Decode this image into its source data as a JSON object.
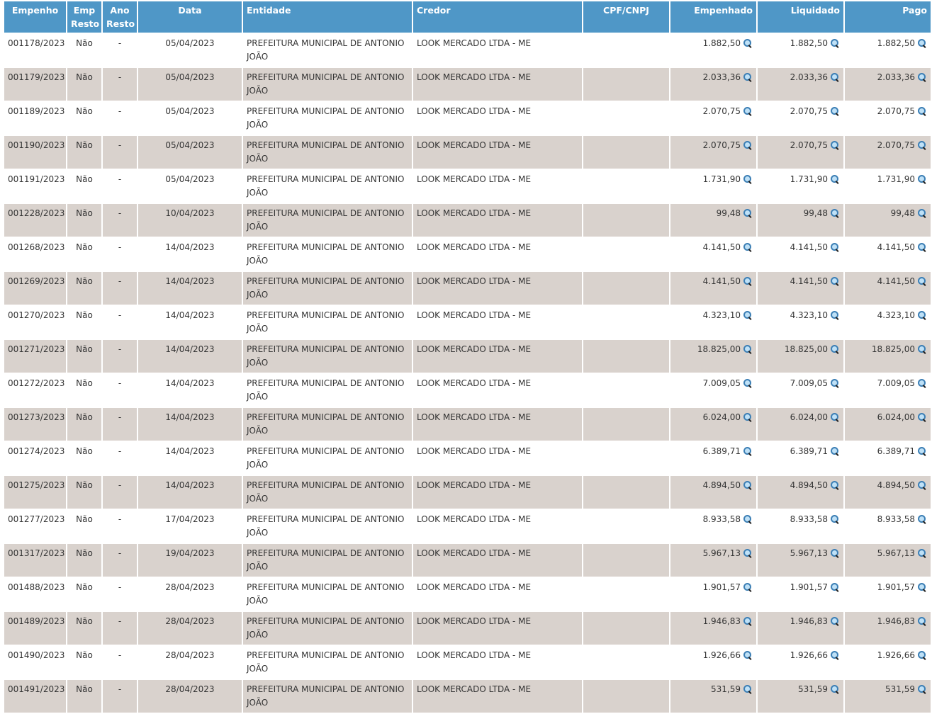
{
  "table": {
    "headers": {
      "empenho": "Empenho",
      "emp_resto": "Emp Resto",
      "ano_resto": "Ano Resto",
      "data": "Data",
      "entidade": "Entidade",
      "credor": "Credor",
      "cpf_cnpj": "CPF/CNPJ",
      "empenhado": "Empenhado",
      "liquidado": "Liquidado",
      "pago": "Pago"
    },
    "icon": "magnifier-icon",
    "rows": [
      {
        "empenho": "001178/2023",
        "emp_resto": "Não",
        "ano_resto": "-",
        "data": "05/04/2023",
        "entidade": "PREFEITURA MUNICIPAL DE ANTONIO JOÃO",
        "credor": "LOOK MERCADO LTDA - ME",
        "cpf": "",
        "empenhado": "1.882,50",
        "liquidado": "1.882,50",
        "pago": "1.882,50"
      },
      {
        "empenho": "001179/2023",
        "emp_resto": "Não",
        "ano_resto": "-",
        "data": "05/04/2023",
        "entidade": "PREFEITURA MUNICIPAL DE ANTONIO JOÃO",
        "credor": "LOOK MERCADO LTDA - ME",
        "cpf": "",
        "empenhado": "2.033,36",
        "liquidado": "2.033,36",
        "pago": "2.033,36"
      },
      {
        "empenho": "001189/2023",
        "emp_resto": "Não",
        "ano_resto": "-",
        "data": "05/04/2023",
        "entidade": "PREFEITURA MUNICIPAL DE ANTONIO JOÃO",
        "credor": "LOOK MERCADO LTDA - ME",
        "cpf": "",
        "empenhado": "2.070,75",
        "liquidado": "2.070,75",
        "pago": "2.070,75"
      },
      {
        "empenho": "001190/2023",
        "emp_resto": "Não",
        "ano_resto": "-",
        "data": "05/04/2023",
        "entidade": "PREFEITURA MUNICIPAL DE ANTONIO JOÃO",
        "credor": "LOOK MERCADO LTDA - ME",
        "cpf": "",
        "empenhado": "2.070,75",
        "liquidado": "2.070,75",
        "pago": "2.070,75"
      },
      {
        "empenho": "001191/2023",
        "emp_resto": "Não",
        "ano_resto": "-",
        "data": "05/04/2023",
        "entidade": "PREFEITURA MUNICIPAL DE ANTONIO JOÃO",
        "credor": "LOOK MERCADO LTDA - ME",
        "cpf": "",
        "empenhado": "1.731,90",
        "liquidado": "1.731,90",
        "pago": "1.731,90"
      },
      {
        "empenho": "001228/2023",
        "emp_resto": "Não",
        "ano_resto": "-",
        "data": "10/04/2023",
        "entidade": "PREFEITURA MUNICIPAL DE ANTONIO JOÃO",
        "credor": "LOOK MERCADO LTDA - ME",
        "cpf": "",
        "empenhado": "99,48",
        "liquidado": "99,48",
        "pago": "99,48"
      },
      {
        "empenho": "001268/2023",
        "emp_resto": "Não",
        "ano_resto": "-",
        "data": "14/04/2023",
        "entidade": "PREFEITURA MUNICIPAL DE ANTONIO JOÃO",
        "credor": "LOOK MERCADO LTDA - ME",
        "cpf": "",
        "empenhado": "4.141,50",
        "liquidado": "4.141,50",
        "pago": "4.141,50"
      },
      {
        "empenho": "001269/2023",
        "emp_resto": "Não",
        "ano_resto": "-",
        "data": "14/04/2023",
        "entidade": "PREFEITURA MUNICIPAL DE ANTONIO JOÃO",
        "credor": "LOOK MERCADO LTDA - ME",
        "cpf": "",
        "empenhado": "4.141,50",
        "liquidado": "4.141,50",
        "pago": "4.141,50"
      },
      {
        "empenho": "001270/2023",
        "emp_resto": "Não",
        "ano_resto": "-",
        "data": "14/04/2023",
        "entidade": "PREFEITURA MUNICIPAL DE ANTONIO JOÃO",
        "credor": "LOOK MERCADO LTDA - ME",
        "cpf": "",
        "empenhado": "4.323,10",
        "liquidado": "4.323,10",
        "pago": "4.323,10"
      },
      {
        "empenho": "001271/2023",
        "emp_resto": "Não",
        "ano_resto": "-",
        "data": "14/04/2023",
        "entidade": "PREFEITURA MUNICIPAL DE ANTONIO JOÃO",
        "credor": "LOOK MERCADO LTDA - ME",
        "cpf": "",
        "empenhado": "18.825,00",
        "liquidado": "18.825,00",
        "pago": "18.825,00"
      },
      {
        "empenho": "001272/2023",
        "emp_resto": "Não",
        "ano_resto": "-",
        "data": "14/04/2023",
        "entidade": "PREFEITURA MUNICIPAL DE ANTONIO JOÃO",
        "credor": "LOOK MERCADO LTDA - ME",
        "cpf": "",
        "empenhado": "7.009,05",
        "liquidado": "7.009,05",
        "pago": "7.009,05"
      },
      {
        "empenho": "001273/2023",
        "emp_resto": "Não",
        "ano_resto": "-",
        "data": "14/04/2023",
        "entidade": "PREFEITURA MUNICIPAL DE ANTONIO JOÃO",
        "credor": "LOOK MERCADO LTDA - ME",
        "cpf": "",
        "empenhado": "6.024,00",
        "liquidado": "6.024,00",
        "pago": "6.024,00"
      },
      {
        "empenho": "001274/2023",
        "emp_resto": "Não",
        "ano_resto": "-",
        "data": "14/04/2023",
        "entidade": "PREFEITURA MUNICIPAL DE ANTONIO JOÃO",
        "credor": "LOOK MERCADO LTDA - ME",
        "cpf": "",
        "empenhado": "6.389,71",
        "liquidado": "6.389,71",
        "pago": "6.389,71"
      },
      {
        "empenho": "001275/2023",
        "emp_resto": "Não",
        "ano_resto": "-",
        "data": "14/04/2023",
        "entidade": "PREFEITURA MUNICIPAL DE ANTONIO JOÃO",
        "credor": "LOOK MERCADO LTDA - ME",
        "cpf": "",
        "empenhado": "4.894,50",
        "liquidado": "4.894,50",
        "pago": "4.894,50"
      },
      {
        "empenho": "001277/2023",
        "emp_resto": "Não",
        "ano_resto": "-",
        "data": "17/04/2023",
        "entidade": "PREFEITURA MUNICIPAL DE ANTONIO JOÃO",
        "credor": "LOOK MERCADO LTDA - ME",
        "cpf": "",
        "empenhado": "8.933,58",
        "liquidado": "8.933,58",
        "pago": "8.933,58"
      },
      {
        "empenho": "001317/2023",
        "emp_resto": "Não",
        "ano_resto": "-",
        "data": "19/04/2023",
        "entidade": "PREFEITURA MUNICIPAL DE ANTONIO JOÃO",
        "credor": "LOOK MERCADO LTDA - ME",
        "cpf": "",
        "empenhado": "5.967,13",
        "liquidado": "5.967,13",
        "pago": "5.967,13"
      },
      {
        "empenho": "001488/2023",
        "emp_resto": "Não",
        "ano_resto": "-",
        "data": "28/04/2023",
        "entidade": "PREFEITURA MUNICIPAL DE ANTONIO JOÃO",
        "credor": "LOOK MERCADO LTDA - ME",
        "cpf": "",
        "empenhado": "1.901,57",
        "liquidado": "1.901,57",
        "pago": "1.901,57"
      },
      {
        "empenho": "001489/2023",
        "emp_resto": "Não",
        "ano_resto": "-",
        "data": "28/04/2023",
        "entidade": "PREFEITURA MUNICIPAL DE ANTONIO JOÃO",
        "credor": "LOOK MERCADO LTDA - ME",
        "cpf": "",
        "empenhado": "1.946,83",
        "liquidado": "1.946,83",
        "pago": "1.946,83"
      },
      {
        "empenho": "001490/2023",
        "emp_resto": "Não",
        "ano_resto": "-",
        "data": "28/04/2023",
        "entidade": "PREFEITURA MUNICIPAL DE ANTONIO JOÃO",
        "credor": "LOOK MERCADO LTDA - ME",
        "cpf": "",
        "empenhado": "1.926,66",
        "liquidado": "1.926,66",
        "pago": "1.926,66"
      },
      {
        "empenho": "001491/2023",
        "emp_resto": "Não",
        "ano_resto": "-",
        "data": "28/04/2023",
        "entidade": "PREFEITURA MUNICIPAL DE ANTONIO JOÃO",
        "credor": "LOOK MERCADO LTDA - ME",
        "cpf": "",
        "empenhado": "531,59",
        "liquidado": "531,59",
        "pago": "531,59"
      }
    ]
  }
}
